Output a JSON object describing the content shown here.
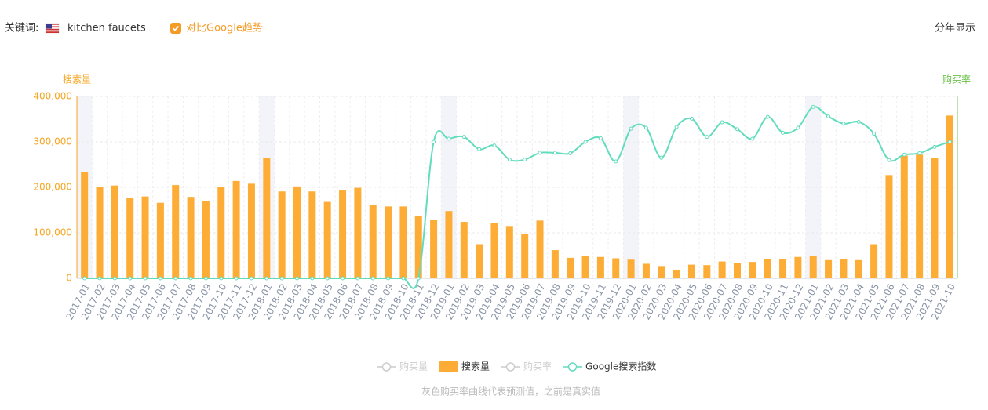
{
  "header": {
    "keyword_label": "关键词:",
    "keyword": "kitchen faucets",
    "compare": "对比Google趋势",
    "yearly": "分年显示"
  },
  "note": "灰色购买率曲线代表预测值，之前是真实值",
  "chart_data": {
    "type": "bar",
    "y_label": "搜索量",
    "y2_label": "购买率",
    "categories": [
      "2017-01",
      "2017-02",
      "2017-03",
      "2017-04",
      "2017-05",
      "2017-06",
      "2017-07",
      "2017-08",
      "2017-09",
      "2017-10",
      "2017-11",
      "2017-12",
      "2018-01",
      "2018-02",
      "2018-03",
      "2018-04",
      "2018-05",
      "2018-06",
      "2018-07",
      "2018-08",
      "2018-09",
      "2018-10",
      "2018-11",
      "2018-12",
      "2019-01",
      "2019-02",
      "2019-03",
      "2019-04",
      "2019-05",
      "2019-06",
      "2019-07",
      "2019-08",
      "2019-09",
      "2019-10",
      "2019-11",
      "2019-12",
      "2020-01",
      "2020-02",
      "2020-03",
      "2020-04",
      "2020-05",
      "2020-06",
      "2020-07",
      "2020-08",
      "2020-09",
      "2020-10",
      "2020-11",
      "2020-12",
      "2021-01",
      "2021-02",
      "2021-03",
      "2021-04",
      "2021-05",
      "2021-06",
      "2021-07",
      "2021-08",
      "2021-09",
      "2021-10"
    ],
    "series": [
      {
        "name": "搜索量",
        "type": "bar",
        "color": "#fdad35",
        "values": [
          233000,
          200000,
          204000,
          177000,
          180000,
          166000,
          205000,
          179000,
          170000,
          201000,
          214000,
          208000,
          264000,
          191000,
          202000,
          191000,
          168000,
          193000,
          199000,
          162000,
          158000,
          158000,
          138000,
          128000,
          148000,
          124000,
          75000,
          122000,
          115000,
          98000,
          127000,
          62000,
          45000,
          50000,
          47000,
          44000,
          41000,
          32000,
          27000,
          19000,
          30000,
          29000,
          37000,
          33000,
          36000,
          42000,
          43000,
          47000,
          50000,
          40000,
          43000,
          40000,
          75000,
          227000,
          270000,
          272000,
          265000,
          358000
        ]
      },
      {
        "name": "Google搜索指数",
        "type": "line",
        "color": "#62dcbd",
        "values": [
          0,
          0,
          0,
          0,
          0,
          0,
          0,
          0,
          0,
          0,
          0,
          0,
          0,
          0,
          0,
          0,
          0,
          0,
          0,
          0,
          0,
          0,
          0,
          300000,
          307000,
          311000,
          284000,
          292000,
          261000,
          261000,
          276000,
          276000,
          275000,
          300000,
          308000,
          257000,
          329000,
          331000,
          265000,
          333000,
          351000,
          311000,
          343000,
          328000,
          307000,
          355000,
          320000,
          331000,
          377000,
          356000,
          340000,
          344000,
          318000,
          260000,
          272000,
          275000,
          289000,
          300000
        ]
      }
    ],
    "legend": [
      {
        "name": "购买量",
        "active": false
      },
      {
        "name": "搜索量",
        "active": true
      },
      {
        "name": "购买率",
        "active": false
      },
      {
        "name": "Google搜索指数",
        "active": true
      }
    ],
    "ylim": [
      0,
      400000
    ],
    "yticks": [
      0,
      {
        "value": 100000,
        "label": "100,000"
      },
      {
        "value": 200000,
        "label": "200,000"
      },
      {
        "value": 300000,
        "label": "300,000"
      },
      {
        "value": 400000,
        "label": "400,000"
      }
    ],
    "grid": true
  }
}
